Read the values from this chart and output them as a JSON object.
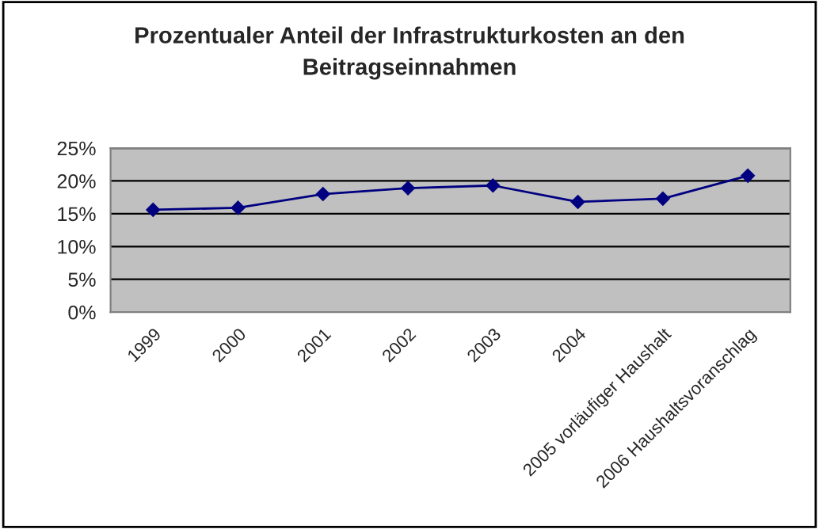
{
  "chart_data": {
    "type": "line",
    "title": "Prozentualer Anteil der Infrastrukturkosten an den\nBeitragseinnahmen",
    "categories": [
      "1999",
      "2000",
      "2001",
      "2002",
      "2003",
      "2004",
      "2005 vorläufiger Haushalt",
      "2006 Haushaltsvoranschlag"
    ],
    "series": [
      {
        "color": "#000080",
        "values": [
          15.6,
          15.9,
          18.0,
          18.9,
          19.3,
          16.8,
          17.3,
          20.8
        ]
      }
    ],
    "ylim": [
      0,
      25
    ],
    "yticks": [
      {
        "value": 0,
        "label": "0%"
      },
      {
        "value": 5,
        "label": "5%"
      },
      {
        "value": 10,
        "label": "10%"
      },
      {
        "value": 15,
        "label": "15%"
      },
      {
        "value": 20,
        "label": "20%"
      },
      {
        "value": 25,
        "label": "25%"
      }
    ],
    "grid": "y",
    "marker": "diamond",
    "line_style": "solid"
  }
}
